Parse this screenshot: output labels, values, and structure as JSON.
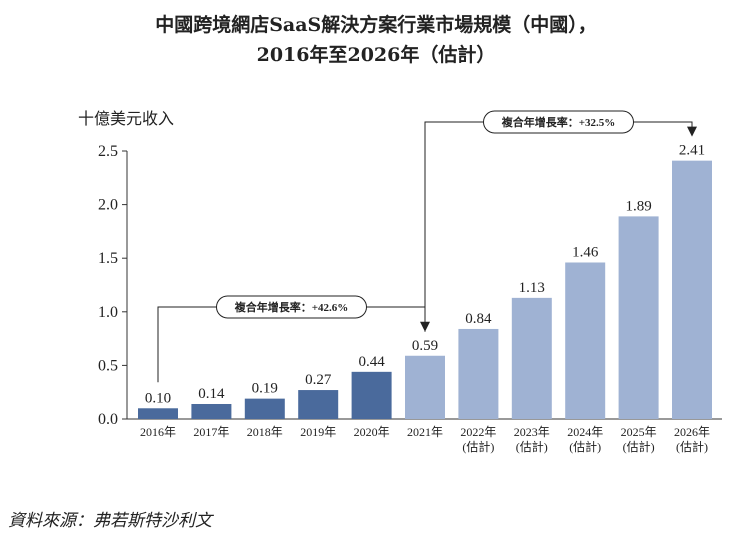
{
  "title_line1": "中國跨境網店SaaS解決方案行業市場規模（中國），",
  "title_line2": "2016年至2026年（估計）",
  "source": "資料來源：弗若斯特沙利文",
  "chart_data": {
    "type": "bar",
    "ylabel": "十億美元收入",
    "ylim": [
      0,
      2.5
    ],
    "yticks": [
      "0.0",
      "0.5",
      "1.0",
      "1.5",
      "2.0",
      "2.5"
    ],
    "categories": [
      {
        "year": "2016年",
        "sub": ""
      },
      {
        "year": "2017年",
        "sub": ""
      },
      {
        "year": "2018年",
        "sub": ""
      },
      {
        "year": "2019年",
        "sub": ""
      },
      {
        "year": "2020年",
        "sub": ""
      },
      {
        "year": "2021年",
        "sub": ""
      },
      {
        "year": "2022年",
        "sub": "(估計)"
      },
      {
        "year": "2023年",
        "sub": "(估計)"
      },
      {
        "year": "2024年",
        "sub": "(估計)"
      },
      {
        "year": "2025年",
        "sub": "(估計)"
      },
      {
        "year": "2026年",
        "sub": "(估計)"
      }
    ],
    "values": [
      0.1,
      0.14,
      0.19,
      0.27,
      0.44,
      0.59,
      0.84,
      1.13,
      1.46,
      1.89,
      2.41
    ],
    "value_labels": [
      "0.10",
      "0.14",
      "0.19",
      "0.27",
      "0.44",
      "0.59",
      "0.84",
      "1.13",
      "1.46",
      "1.89",
      "2.41"
    ],
    "series_colors": [
      "#4a6a9c",
      "#4a6a9c",
      "#4a6a9c",
      "#4a6a9c",
      "#4a6a9c",
      "#9fb2d3",
      "#9fb2d3",
      "#9fb2d3",
      "#9fb2d3",
      "#9fb2d3",
      "#9fb2d3"
    ],
    "annotations": [
      {
        "label": "複合年增長率：+42.6%",
        "from_index": 0,
        "to_index": 5
      },
      {
        "label": "複合年增長率：+32.5%",
        "from_index": 5,
        "to_index": 10
      }
    ]
  }
}
